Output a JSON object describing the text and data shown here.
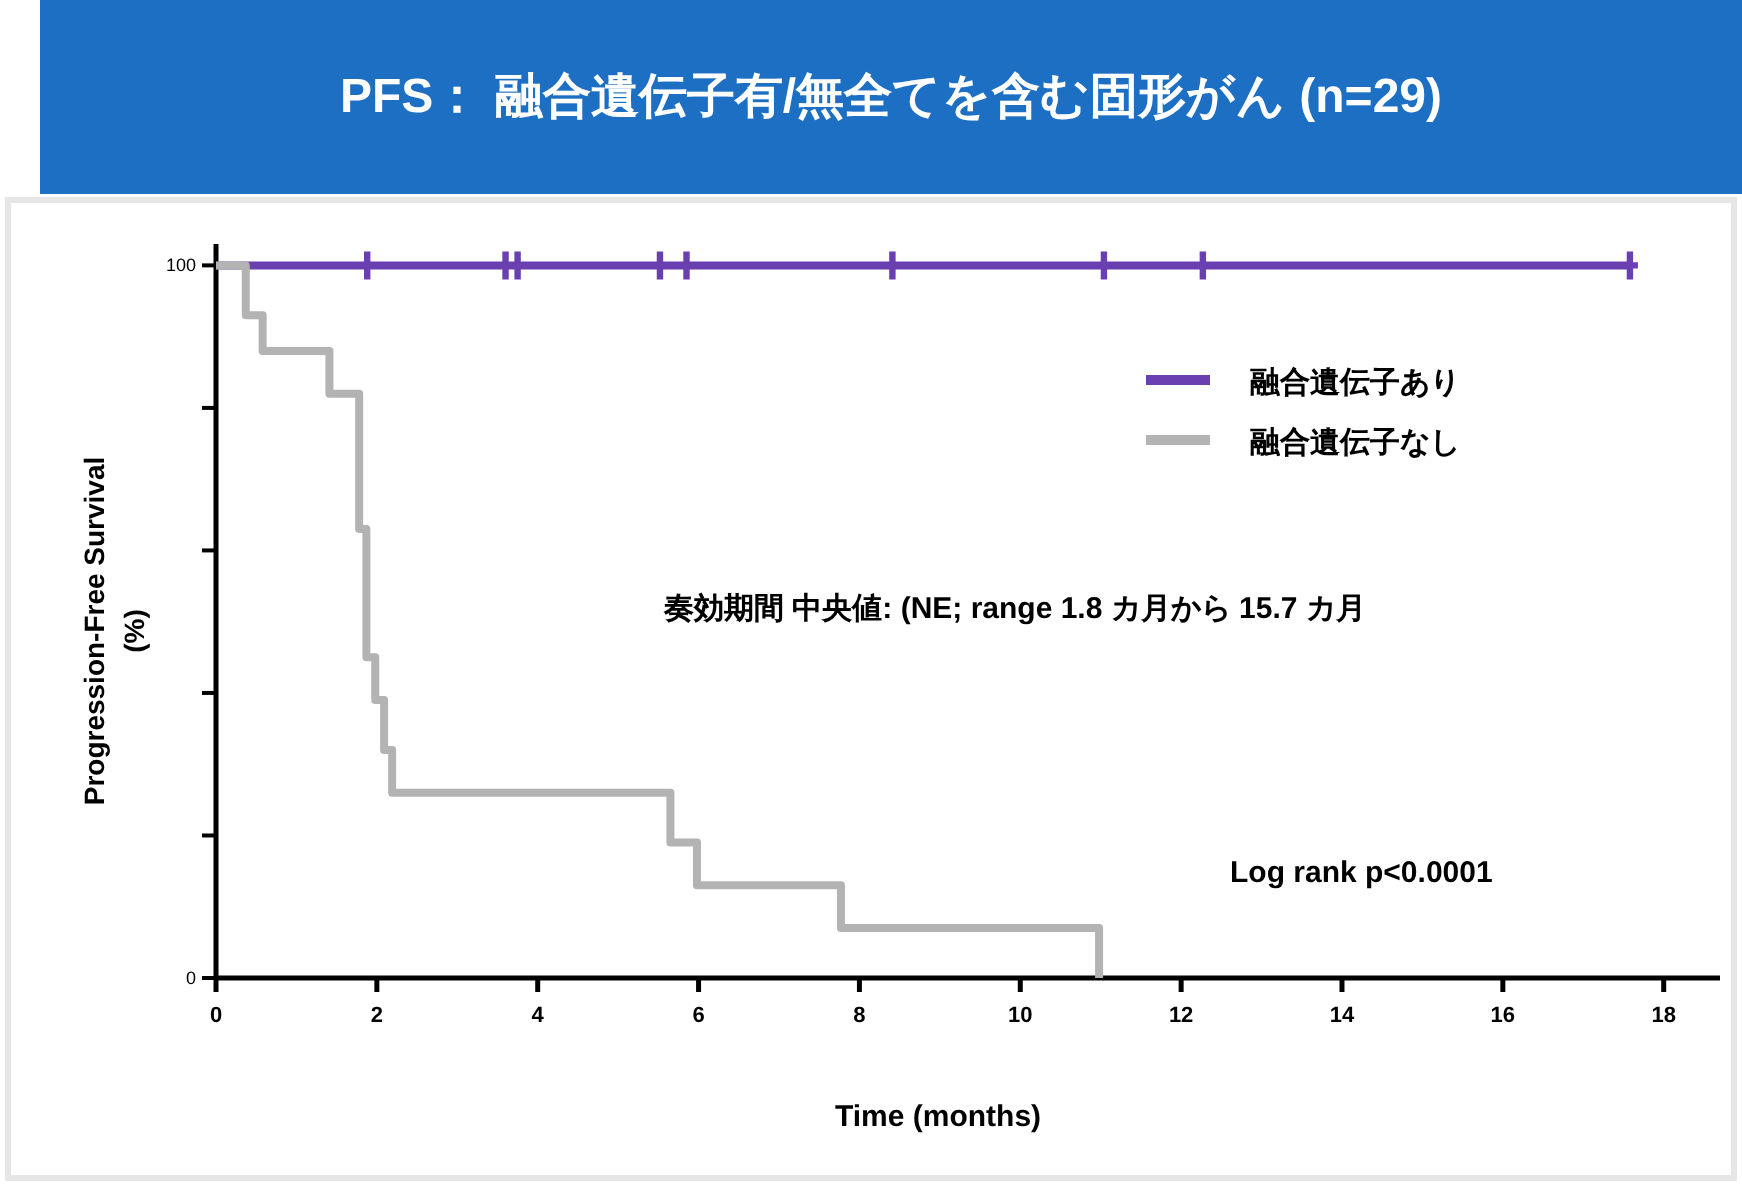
{
  "chart_data": {
    "type": "step",
    "title": "PFS： 融合遺伝子有/無全てを含む固形がん (n=29)",
    "xlabel": "Time (months)",
    "ylabel": "Progression-Free Survival\n(%)",
    "xlim": [
      0,
      18.7
    ],
    "xticks": [
      0,
      2,
      4,
      6,
      8,
      10,
      12,
      14,
      16,
      18
    ],
    "ylim": [
      0,
      103
    ],
    "yticks": [
      0,
      {
        "value": 20,
        "label": null
      },
      {
        "value": 40,
        "label": null
      },
      {
        "value": 60,
        "label": null
      },
      {
        "value": 80,
        "label": null
      },
      100
    ],
    "grid": false,
    "legend": "top right",
    "line_style": "solid",
    "series": [
      {
        "name": "融合遺伝子あり",
        "color": "#6a3fb0",
        "x": [
          0,
          17.58
        ],
        "values": [
          100,
          100
        ]
      },
      {
        "name": "融合遺伝子なし",
        "color": "#b3b3b3",
        "x": [
          0,
          0.37,
          0.58,
          1.41,
          1.78,
          1.87,
          1.98,
          2.09,
          2.19,
          5.65,
          5.98,
          7.77,
          10.98
        ],
        "values": [
          100,
          93,
          88,
          82,
          63,
          45,
          39,
          32,
          26,
          19,
          13,
          7,
          0
        ]
      },
      {
        "type": "scatter",
        "marker": "cross",
        "color": "#6a3fb0",
        "x": [
          1.88,
          3.6,
          3.75,
          5.52,
          5.85,
          8.41,
          11.04,
          12.27,
          17.58
        ],
        "values": [
          100,
          100,
          100,
          100,
          100,
          100,
          100,
          100,
          100
        ]
      }
    ],
    "annotations": [
      "奏効期間 中央値: (NE; range 1.8 カ月から 15.7 カ月",
      "Log rank p<0.0001"
    ]
  }
}
